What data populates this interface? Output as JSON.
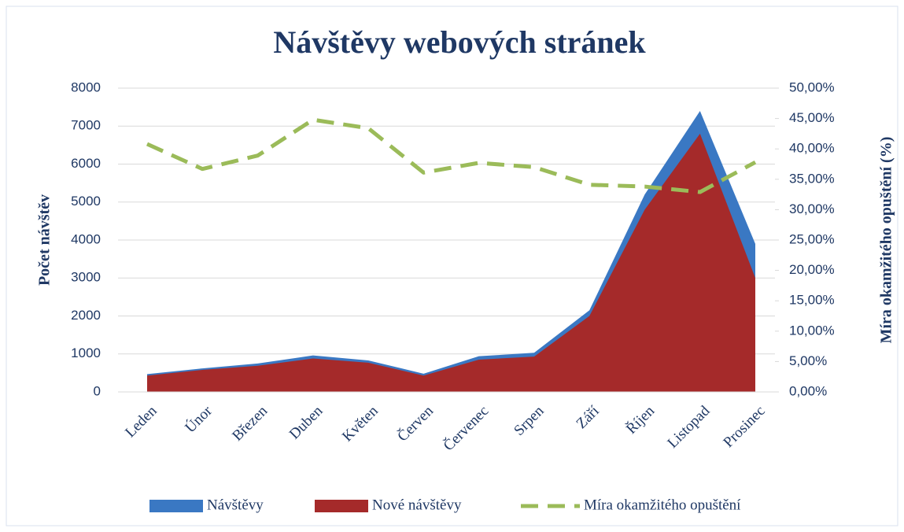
{
  "chart_data": {
    "type": "area-line",
    "title": "Návštěvy webových stránek",
    "y_label": "Počet návštěv",
    "y2_label": "Míra okamžitého opuštění (%)",
    "categories": [
      "Leden",
      "Únor",
      "Březen",
      "Duben",
      "Květen",
      "Červen",
      "Červenec",
      "Srpen",
      "Září",
      "Říjen",
      "Listopad",
      "Prosinec"
    ],
    "series": [
      {
        "name": "Návštěvy",
        "type": "area",
        "color": "#3a78c3",
        "values": [
          470,
          620,
          750,
          960,
          830,
          480,
          940,
          1030,
          2150,
          5200,
          7400,
          3900
        ]
      },
      {
        "name": "Nové návštěvy",
        "type": "area",
        "color": "#a52a2a",
        "values": [
          430,
          580,
          690,
          880,
          770,
          430,
          850,
          930,
          2000,
          4800,
          6800,
          3000
        ]
      },
      {
        "name": "Míra okamžitého opuštění",
        "type": "line",
        "axis": "y2",
        "color": "#9bbb59",
        "values": [
          40.8,
          36.7,
          38.9,
          44.8,
          43.4,
          36.1,
          37.7,
          37.0,
          34.1,
          33.8,
          32.9,
          37.8
        ]
      }
    ],
    "ylim": [
      0,
      8000
    ],
    "yticks": [
      0,
      1000,
      2000,
      3000,
      4000,
      5000,
      6000,
      7000,
      8000
    ],
    "y2lim": [
      0,
      50
    ],
    "y2ticks": [
      {
        "value": 0,
        "label": "0,00%"
      },
      {
        "value": 5,
        "label": "5,00%"
      },
      {
        "value": 10,
        "label": "10,00%"
      },
      {
        "value": 15,
        "label": "15,00%"
      },
      {
        "value": 20,
        "label": "20,00%"
      },
      {
        "value": 25,
        "label": "25,00%"
      },
      {
        "value": 30,
        "label": "30,00%"
      },
      {
        "value": 35,
        "label": "35,00%"
      },
      {
        "value": 40,
        "label": "40,00%"
      },
      {
        "value": 45,
        "label": "45,00%"
      },
      {
        "value": 50,
        "label": "50,00%"
      }
    ],
    "grid": true,
    "legend": "bottom"
  }
}
